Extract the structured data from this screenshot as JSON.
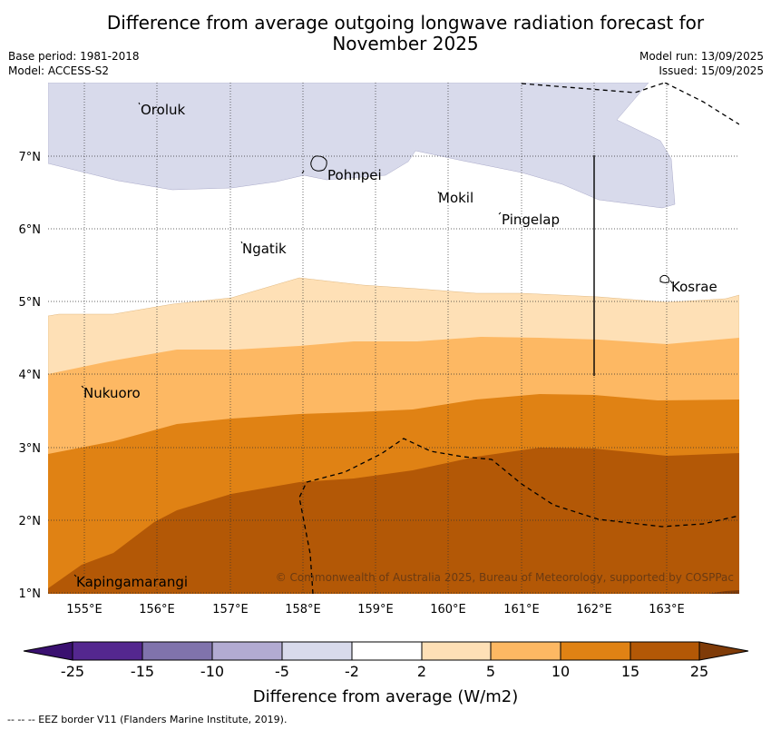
{
  "title": "Difference from average outgoing longwave radiation forecast for November 2025",
  "title_lines": [
    "Difference from average outgoing longwave radiation forecast for",
    "November 2025"
  ],
  "meta_left": [
    "Base period: 1981-2018",
    "Model: ACCESS-S2"
  ],
  "meta_right": [
    "Model run: 13/09/2025",
    "Issued: 15/09/2025"
  ],
  "map": {
    "lon_range": [
      154.5,
      164.0
    ],
    "lat_range": [
      1.0,
      8.0
    ],
    "lon_ticks": [
      "155°E",
      "156°E",
      "157°E",
      "158°E",
      "159°E",
      "160°E",
      "161°E",
      "162°E",
      "163°E"
    ],
    "lat_ticks": [
      "1°N",
      "2°N",
      "3°N",
      "4°N",
      "5°N",
      "6°N",
      "7°N"
    ],
    "places": [
      {
        "name": "Oroluk",
        "lon": 155.75,
        "lat": 7.65
      },
      {
        "name": "Pohnpei",
        "lon": 158.3,
        "lat": 6.78
      },
      {
        "name": "Mokil",
        "lon": 159.8,
        "lat": 6.42
      },
      {
        "name": "Pingelap",
        "lon": 160.7,
        "lat": 6.2
      },
      {
        "name": "Ngatik",
        "lon": 157.15,
        "lat": 5.77
      },
      {
        "name": "Kosrae",
        "lon": 162.98,
        "lat": 5.32
      },
      {
        "name": "Nukuoro",
        "lon": 154.95,
        "lat": 3.85
      },
      {
        "name": "Kapingamarangi",
        "lon": 154.85,
        "lat": 1.2
      }
    ],
    "copyright": "© Commonwealth of Australia 2025, Bureau of Meteorology, supported by COSPPac"
  },
  "colorbar": {
    "colors": [
      "#3a1070",
      "#54278f",
      "#8073ac",
      "#b2abd2",
      "#d8daeb",
      "#ffffff",
      "#fee0b6",
      "#fdb863",
      "#e08214",
      "#b35806",
      "#7f3b08"
    ],
    "labels": [
      "-25",
      "-15",
      "-10",
      "-5",
      "-2",
      "2",
      "5",
      "10",
      "15",
      "25"
    ],
    "title": "Difference from average (W/m2)"
  },
  "footer": "--  --  -- EEZ border V11 (Flanders Marine Institute, 2019)."
}
